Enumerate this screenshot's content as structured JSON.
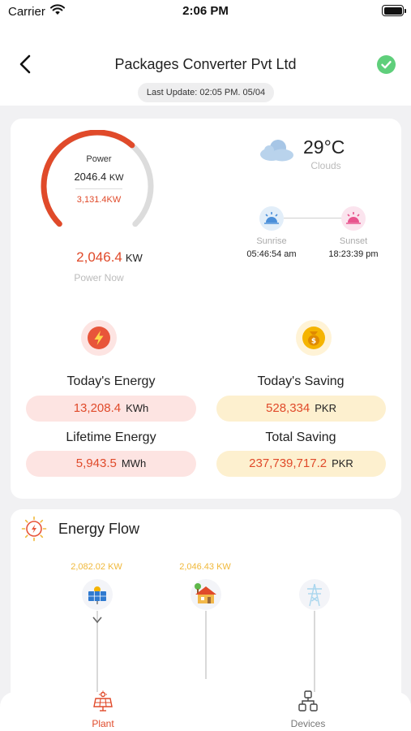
{
  "status_bar": {
    "carrier": "Carrier",
    "time": "2:06 PM"
  },
  "nav": {
    "title": "Packages Converter Pvt Ltd",
    "back_icon": "chevron-left-icon",
    "status_icon": "check-circle-icon"
  },
  "last_update": "Last Update: 02:05 PM. 05/04",
  "power_gauge": {
    "label": "Power",
    "value": "2046.4",
    "unit": "KW",
    "capacity": "3,131.4KW",
    "fill_fraction": 0.65
  },
  "power_now": {
    "value": "2,046.4",
    "unit": "KW",
    "label": "Power Now"
  },
  "weather": {
    "temperature": "29°C",
    "condition": "Clouds",
    "icon": "cloud-icon"
  },
  "sun": {
    "sunrise_label": "Sunrise",
    "sunrise_time": "05:46:54 am",
    "sunset_label": "Sunset",
    "sunset_time": "18:23:39 pm"
  },
  "stats": {
    "todays_energy": {
      "title": "Today's Energy",
      "value": "13,208.4",
      "unit": "KWh"
    },
    "lifetime_energy": {
      "title": "Lifetime Energy",
      "value": "5,943.5",
      "unit": "MWh"
    },
    "todays_saving": {
      "title": "Today's Saving",
      "value": "528,334",
      "unit": "PKR"
    },
    "total_saving": {
      "title": "Total Saving",
      "value": "237,739,717.2",
      "unit": "PKR"
    }
  },
  "energy_flow": {
    "title": "Energy Flow",
    "solar_value": "2,082.02 KW",
    "home_value": "2,046.43 KW"
  },
  "tabs": [
    {
      "label": "Plant",
      "icon": "solar-panel-icon",
      "active": true
    },
    {
      "label": "Devices",
      "icon": "network-icon",
      "active": false
    }
  ],
  "colors": {
    "accent": "#e04a2a",
    "gauge_track": "#dcdcdc",
    "saving_yellow": "#f0b83a",
    "success_green": "#5fcf7b",
    "background": "#f1f1f3"
  }
}
